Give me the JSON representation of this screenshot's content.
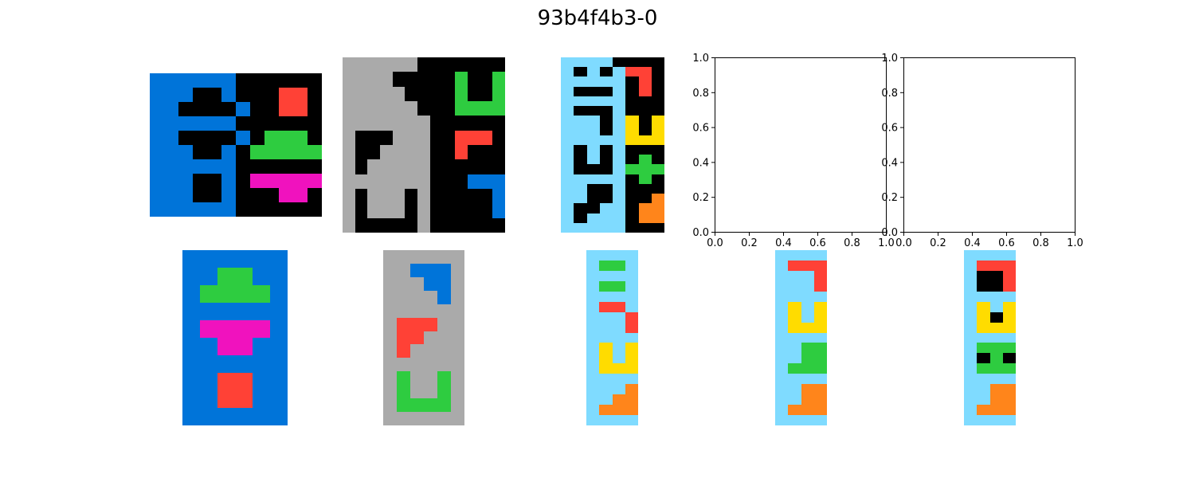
{
  "title": "93b4f4b3-0",
  "palette": {
    "0": "#000000",
    "1": "#0074D9",
    "2": "#FF4136",
    "3": "#2ECC40",
    "4": "#FFDC00",
    "5": "#AAAAAA",
    "6": "#F012BE",
    "7": "#FF851B",
    "8": "#7FDBFF"
  },
  "grids": [
    {
      "id": "train1-input",
      "rows": [
        "111111000000",
        "111001000220",
        "110000100220",
        "111111000000",
        "110000103330",
        "111001033333",
        "111111000000",
        "111001066666",
        "111001000660",
        "111111000000"
      ]
    },
    {
      "id": "train1-output",
      "rows": [
        "111111",
        "113311",
        "133331",
        "111111",
        "166661",
        "116611",
        "111111",
        "112211",
        "112211",
        "111111"
      ]
    },
    {
      "id": "train2-input",
      "rows": [
        "5555550000000",
        "5555000003003",
        "5555500003003",
        "5555550003333",
        "5555555000000",
        "5000555002220",
        "5005555002000",
        "5055555000000",
        "5555555000111",
        "5055505000001",
        "5055505000001",
        "5000005000000"
      ]
    },
    {
      "id": "train2-output",
      "rows": [
        "555555",
        "551115",
        "555115",
        "555515",
        "555555",
        "522255",
        "522555",
        "525555",
        "555555",
        "535535",
        "535535",
        "533335",
        "555555"
      ]
    },
    {
      "id": "train3-input",
      "rows": [
        "88880000",
        "80808220",
        "88888020",
        "80008020",
        "88888000",
        "80008000",
        "88808404",
        "88808404",
        "88888444",
        "80808000",
        "80808030",
        "80008333",
        "88888030",
        "88008000",
        "88008007",
        "80088077",
        "80888077",
        "88888000"
      ]
    },
    {
      "id": "train3-output",
      "rows": [
        "8888",
        "8338",
        "8888",
        "8338",
        "8888",
        "8228",
        "8882",
        "8882",
        "8888",
        "8484",
        "8484",
        "8444",
        "8888",
        "8887",
        "8877",
        "8777",
        "8888"
      ]
    },
    {
      "id": "test-input",
      "rows": [
        "8888",
        "8222",
        "8882",
        "8882",
        "8888",
        "8484",
        "8484",
        "8444",
        "8888",
        "8833",
        "8833",
        "8333",
        "8888",
        "8877",
        "8877",
        "8777",
        "8888"
      ]
    },
    {
      "id": "test-output-extra",
      "rows": [
        "8888",
        "8222",
        "8002",
        "8002",
        "8888",
        "8484",
        "8404",
        "8444",
        "8888",
        "8333",
        "8030",
        "8333",
        "8888",
        "8877",
        "8877",
        "8777",
        "8888"
      ]
    }
  ],
  "empty_axes": {
    "xticks": [
      "0.0",
      "0.2",
      "0.4",
      "0.6",
      "0.8",
      "1.0"
    ],
    "yticks": [
      "0.0",
      "0.2",
      "0.4",
      "0.6",
      "0.8",
      "1.0"
    ],
    "xlim": [
      0,
      1
    ],
    "ylim": [
      0,
      1
    ]
  }
}
